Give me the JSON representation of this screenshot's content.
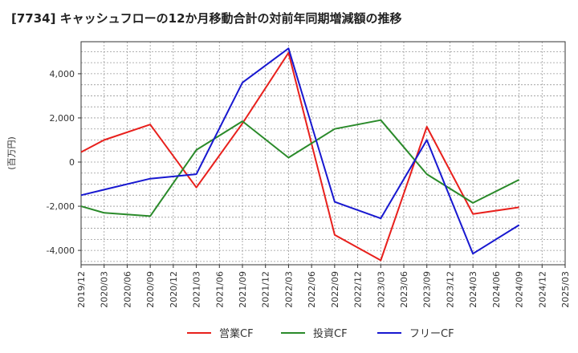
{
  "chart_data": {
    "type": "line",
    "title": "[7734]  キャッシュフローの12か月移動合計の対前年同期増減額の推移",
    "ylabel": "(百万円)",
    "xlabel": "",
    "ylim": [
      -4650,
      5450
    ],
    "yticks": [
      -4000,
      -2000,
      0,
      2000,
      4000
    ],
    "ytick_labels": [
      "-4,000",
      "-2,000",
      "0",
      "2,000",
      "4,000"
    ],
    "categories": [
      "2019/12",
      "2020/03",
      "2020/06",
      "2020/09",
      "2020/12",
      "2021/03",
      "2021/06",
      "2021/09",
      "2021/12",
      "2022/03",
      "2022/06",
      "2022/09",
      "2022/12",
      "2023/03",
      "2023/06",
      "2023/09",
      "2023/12",
      "2024/03",
      "2024/06",
      "2024/09",
      "2024/12",
      "2025/03"
    ],
    "grid": true,
    "legend_position": "bottom",
    "series": [
      {
        "name": "営業CF",
        "color": "#e8201c",
        "values": [
          450,
          1000,
          null,
          1700,
          null,
          -1150,
          null,
          1750,
          null,
          4950,
          null,
          -3300,
          null,
          -4450,
          null,
          1600,
          null,
          -2350,
          null,
          -2050,
          null,
          null
        ]
      },
      {
        "name": "投資CF",
        "color": "#2a8a2a",
        "values": [
          -2000,
          -2300,
          null,
          -2450,
          null,
          550,
          null,
          1850,
          null,
          200,
          null,
          1500,
          null,
          1900,
          null,
          -550,
          null,
          -1850,
          null,
          -800,
          null,
          null
        ]
      },
      {
        "name": "フリーCF",
        "color": "#1818d0",
        "values": [
          -1500,
          -1250,
          null,
          -750,
          null,
          -550,
          null,
          3600,
          null,
          5150,
          null,
          -1800,
          null,
          -2550,
          null,
          1000,
          null,
          -4150,
          null,
          -2850,
          null,
          null
        ]
      }
    ]
  }
}
